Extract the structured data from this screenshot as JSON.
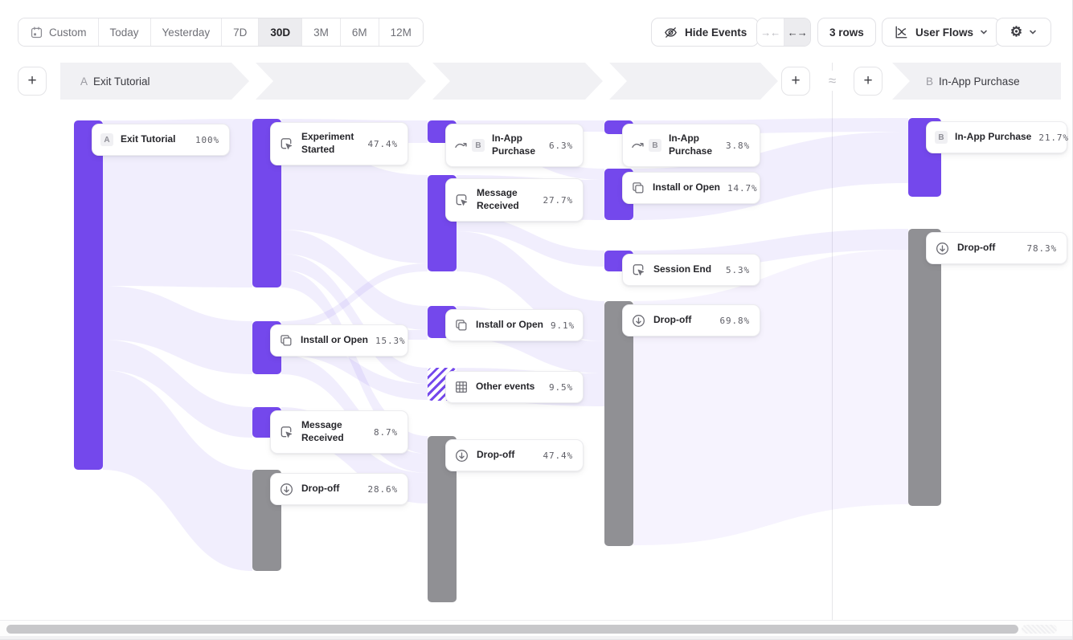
{
  "toolbar": {
    "date_ranges": [
      "Custom",
      "Today",
      "Yesterday",
      "7D",
      "30D",
      "3M",
      "6M",
      "12M"
    ],
    "selected_range": "30D",
    "hide_events_label": "Hide Events",
    "rows_label": "3 rows",
    "view_label": "User Flows"
  },
  "header": {
    "step_a_letter": "A",
    "step_a_label": "Exit Tutorial",
    "step_b_letter": "B",
    "step_b_label": "In-App Purchase",
    "connector": "≈",
    "add_button": "+"
  },
  "colors": {
    "event": "#7448ec",
    "dropoff": "#909094",
    "link": "#7a55ee",
    "selected_bg": "#ececef"
  },
  "chart_data": {
    "type": "sankey",
    "title": "User Flows from Exit Tutorial (A) to In-App Purchase (B)",
    "columns": [
      {
        "step": "A",
        "nodes": [
          {
            "id": "a",
            "label": "Exit Tutorial",
            "value": "100%",
            "kind": "event",
            "icon": "letter-badge",
            "badge": "A",
            "lines": 1
          }
        ]
      },
      {
        "nodes": [
          {
            "id": "b1",
            "label": "Experiment Started",
            "value": "47.4%",
            "kind": "event",
            "icon": "autotrack",
            "lines": 2
          },
          {
            "id": "b2",
            "label": "Install or Open",
            "value": "15.3%",
            "kind": "event",
            "icon": "copy",
            "lines": 1
          },
          {
            "id": "b3",
            "label": "Message Received",
            "value": "8.7%",
            "kind": "event",
            "icon": "autotrack",
            "lines": 2
          },
          {
            "id": "b4",
            "label": "Drop-off",
            "value": "28.6%",
            "kind": "dropoff",
            "icon": "dropoff",
            "lines": 1
          }
        ]
      },
      {
        "nodes": [
          {
            "id": "c1",
            "label": "In-App Purchase",
            "value": "6.3%",
            "kind": "event",
            "icon": "skip",
            "badge": "B",
            "lines": 2
          },
          {
            "id": "c2",
            "label": "Message Received",
            "value": "27.7%",
            "kind": "event",
            "icon": "autotrack",
            "lines": 2
          },
          {
            "id": "c3",
            "label": "Install or Open",
            "value": "9.1%",
            "kind": "event",
            "icon": "copy",
            "lines": 1
          },
          {
            "id": "c4",
            "label": "Other events",
            "value": "9.5%",
            "kind": "other",
            "icon": "grid",
            "lines": 1
          },
          {
            "id": "c5",
            "label": "Drop-off",
            "value": "47.4%",
            "kind": "dropoff",
            "icon": "dropoff",
            "lines": 1
          }
        ]
      },
      {
        "nodes": [
          {
            "id": "d1",
            "label": "In-App Purchase",
            "value": "3.8%",
            "kind": "event",
            "icon": "skip",
            "badge": "B",
            "lines": 2
          },
          {
            "id": "d2",
            "label": "Install or Open",
            "value": "14.7%",
            "kind": "event",
            "icon": "copy",
            "lines": 1
          },
          {
            "id": "d3",
            "label": "Session End",
            "value": "5.3%",
            "kind": "event",
            "icon": "autotrack",
            "lines": 1
          },
          {
            "id": "d4",
            "label": "Drop-off",
            "value": "69.8%",
            "kind": "dropoff",
            "icon": "dropoff",
            "lines": 1
          }
        ]
      },
      {
        "step": "B",
        "nodes": [
          {
            "id": "e1",
            "label": "In-App Purchase",
            "value": "21.7%",
            "kind": "event",
            "icon": "letter-badge",
            "badge": "B",
            "lines": 1
          },
          {
            "id": "e2",
            "label": "Drop-off",
            "value": "78.3%",
            "kind": "dropoff",
            "icon": "dropoff",
            "lines": 1
          }
        ]
      }
    ]
  }
}
